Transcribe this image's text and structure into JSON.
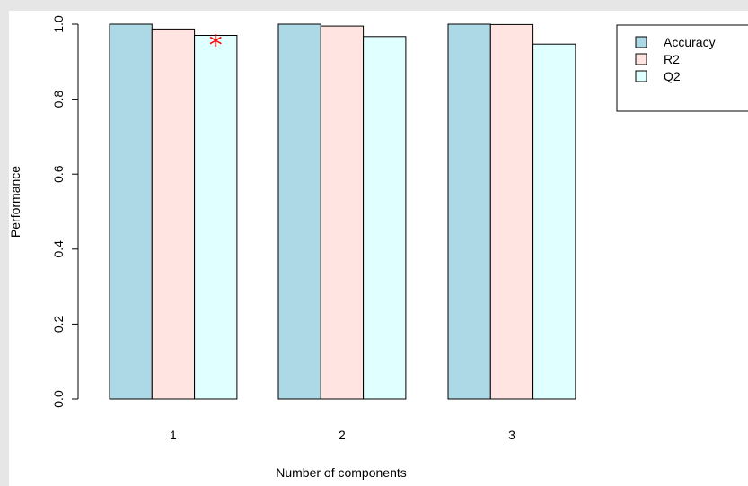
{
  "chart_data": {
    "type": "bar",
    "categories": [
      "1",
      "2",
      "3"
    ],
    "series": [
      {
        "name": "Accuracy",
        "values": [
          1.0,
          1.0,
          1.0
        ],
        "color": "#add8e6"
      },
      {
        "name": "R2",
        "values": [
          0.987,
          0.995,
          0.999
        ],
        "color": "#ffe4e1"
      },
      {
        "name": "Q2",
        "values": [
          0.97,
          0.967,
          0.947
        ],
        "color": "#e0ffff"
      }
    ],
    "title": "",
    "xlabel": "Number of components",
    "ylabel": "Performance",
    "ylim": [
      0,
      1.0
    ],
    "yticks": [
      "0.0",
      "0.2",
      "0.4",
      "0.6",
      "0.8",
      "1.0"
    ],
    "yticks_values": [
      0,
      0.2,
      0.4,
      0.6,
      0.8,
      1.0
    ],
    "annotation": {
      "text": "*",
      "category_index": 0,
      "series_index": 2,
      "color": "#ff0000"
    },
    "legend_position": "top-right",
    "grid": false
  }
}
